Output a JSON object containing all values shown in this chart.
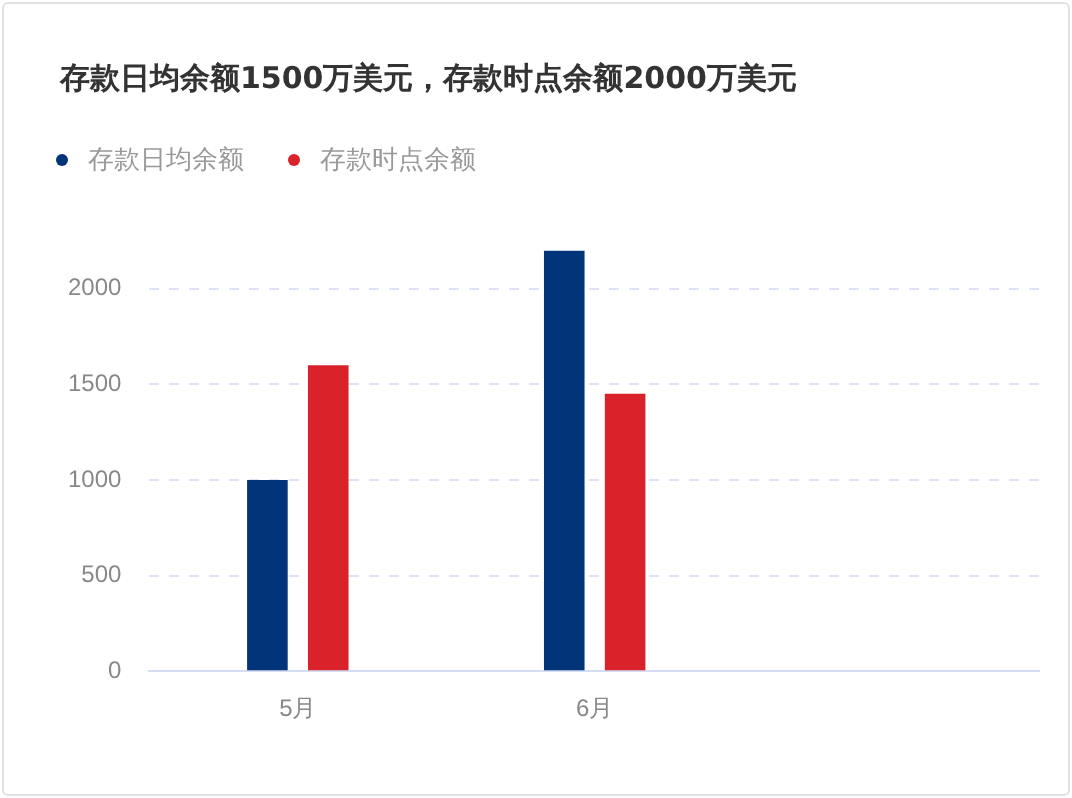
{
  "chart_data": {
    "type": "bar",
    "title": "存款日均余额1500万美元，存款时点余额2000万美元",
    "categories": [
      "5月",
      "6月",
      null
    ],
    "series": [
      {
        "name": "存款日均余额",
        "color": "#02347a",
        "values": [
          1000,
          2200,
          null
        ]
      },
      {
        "name": "存款时点余额",
        "color": "#d9222a",
        "values": [
          1600,
          1450,
          null
        ]
      }
    ],
    "ylim": [
      0,
      2200
    ],
    "yticks": [
      0,
      500,
      1000,
      1500,
      2000
    ],
    "grid": "y",
    "legend": "top left"
  }
}
